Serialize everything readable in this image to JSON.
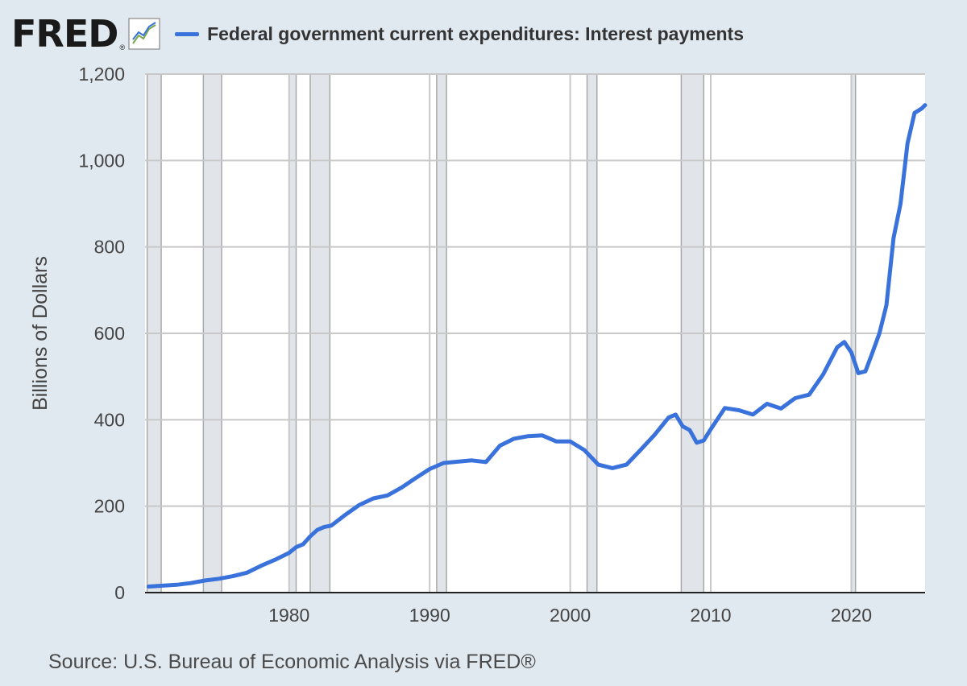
{
  "brand": {
    "logo_text": "FRED",
    "registered_mark": "®",
    "icon": "line-chart-icon"
  },
  "source_text": "Source: U.S. Bureau of Economic Analysis via FRED®",
  "colors": {
    "line": "#3a72db",
    "background": "#e1e9f0",
    "plot_background": "#ffffff",
    "recession": "#e1e5ea",
    "grid": "#c8c8c8"
  },
  "chart_data": {
    "type": "line",
    "title": "",
    "xlabel": "",
    "ylabel": "Billions of Dollars",
    "xlim": [
      1969.75,
      2025.25
    ],
    "ylim": [
      0,
      1200
    ],
    "yticks": [
      0,
      200,
      400,
      600,
      800,
      1000,
      1200
    ],
    "ytick_labels": [
      "0",
      "200",
      "400",
      "600",
      "800",
      "1,000",
      "1,200"
    ],
    "xticks": [
      1980,
      1990,
      2000,
      2010,
      2020
    ],
    "xtick_labels": [
      "1980",
      "1990",
      "2000",
      "2010",
      "2020"
    ],
    "grid": true,
    "legend_position": "top",
    "recessions": [
      [
        1969.9,
        1970.9
      ],
      [
        1973.9,
        1975.2
      ],
      [
        1980.0,
        1980.5
      ],
      [
        1981.5,
        1982.9
      ],
      [
        1990.5,
        1991.2
      ],
      [
        2001.2,
        2001.9
      ],
      [
        2007.9,
        2009.5
      ],
      [
        2020.0,
        2020.3
      ]
    ],
    "series": [
      {
        "name": "Federal government current expenditures: Interest payments",
        "x": [
          1970,
          1971,
          1972,
          1973,
          1974,
          1975,
          1976,
          1977,
          1978,
          1979,
          1980,
          1980.5,
          1981,
          1981.5,
          1982,
          1982.5,
          1983,
          1984,
          1985,
          1986,
          1987,
          1988,
          1989,
          1990,
          1991,
          1992,
          1993,
          1994,
          1995,
          1996,
          1997,
          1998,
          1999,
          2000,
          2001,
          2002,
          2003,
          2004,
          2005,
          2006,
          2007,
          2007.5,
          2008,
          2008.5,
          2009,
          2009.5,
          2010,
          2011,
          2012,
          2013,
          2014,
          2015,
          2016,
          2017,
          2018,
          2019,
          2019.5,
          2020,
          2020.5,
          2021,
          2021.5,
          2022,
          2022.5,
          2023,
          2023.5,
          2024,
          2024.5,
          2025,
          2025.25
        ],
        "values": [
          14,
          16,
          18,
          22,
          28,
          32,
          38,
          46,
          62,
          76,
          92,
          105,
          112,
          130,
          145,
          152,
          155,
          180,
          203,
          218,
          225,
          243,
          265,
          286,
          300,
          303,
          306,
          302,
          340,
          356,
          362,
          364,
          350,
          350,
          330,
          296,
          288,
          296,
          330,
          365,
          405,
          412,
          385,
          376,
          347,
          352,
          378,
          427,
          422,
          412,
          437,
          426,
          450,
          458,
          505,
          568,
          580,
          556,
          508,
          512,
          555,
          600,
          665,
          820,
          900,
          1040,
          1110,
          1120,
          1128
        ]
      }
    ]
  }
}
